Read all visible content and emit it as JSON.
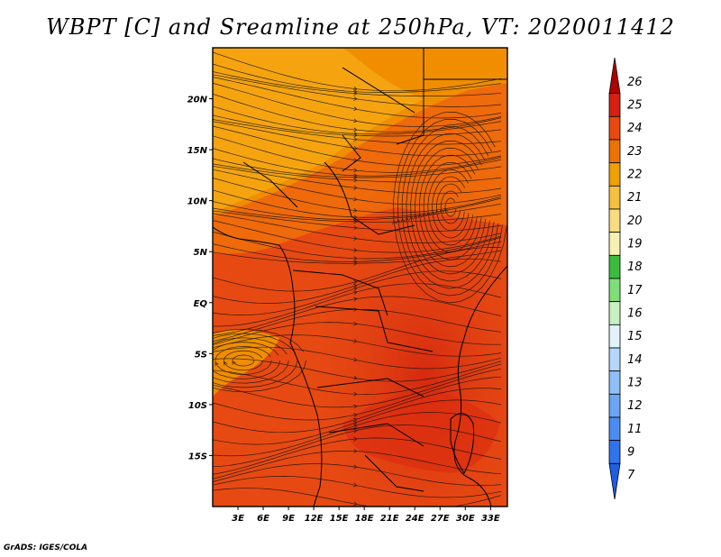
{
  "title": "WBPT [C] and Sreamline at 250hPa, VT: 2020011412",
  "credit": "GrADS: IGES/COLA",
  "map": {
    "lat_ticks": [
      "20N",
      "15N",
      "10N",
      "5N",
      "EQ",
      "5S",
      "10S",
      "15S"
    ],
    "lon_ticks": [
      "3E",
      "6E",
      "9E",
      "12E",
      "15E",
      "18E",
      "21E",
      "24E",
      "27E",
      "30E",
      "33E"
    ],
    "lat_range": [
      -20,
      25
    ],
    "lon_range": [
      0,
      35
    ]
  },
  "colorbar": {
    "labels": [
      "7",
      "9",
      "11",
      "12",
      "13",
      "14",
      "15",
      "16",
      "17",
      "18",
      "19",
      "20",
      "21",
      "22",
      "23",
      "24",
      "25",
      "26"
    ],
    "colors": [
      "#1e5ee6",
      "#2f74ee",
      "#4a8cf2",
      "#6ba6f5",
      "#8ebff8",
      "#b5d6fb",
      "#e0f2fb",
      "#c8f0c0",
      "#7ede78",
      "#3cbc3c",
      "#f8f0b0",
      "#f8dc80",
      "#f5c040",
      "#f0a000",
      "#ee7200",
      "#e84a0e",
      "#d82010",
      "#b00000"
    ]
  }
}
